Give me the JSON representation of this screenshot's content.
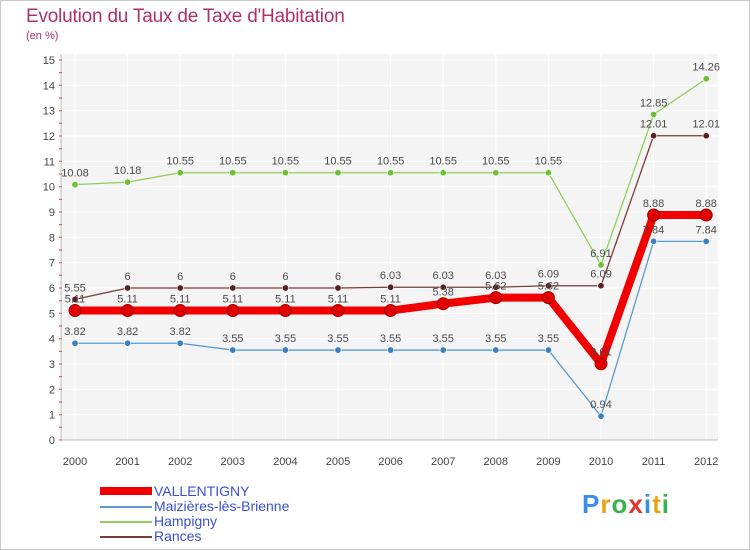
{
  "header": {
    "title": "Evolution du Taux de Taxe d'Habitation",
    "subtitle": "(en %)"
  },
  "brand": {
    "parts": [
      "P",
      "r",
      "o",
      "x",
      "i",
      "t",
      "i"
    ],
    "colors": [
      "#3a8ee6",
      "#e8a21c",
      "#3bb34a",
      "#e2342d",
      "#3a8ee6",
      "#e8a21c",
      "#3bb34a"
    ]
  },
  "chart_data": {
    "type": "line",
    "title": "Evolution du Taux de Taxe d'Habitation",
    "ylabel": "(en %)",
    "xlabel": "",
    "ylim": [
      0,
      15
    ],
    "yticks": [
      "0",
      "1",
      "2",
      "3",
      "4",
      "5",
      "6",
      "7",
      "8",
      "9",
      "10",
      "11",
      "12",
      "13",
      "14",
      "15"
    ],
    "grid": true,
    "categories": [
      "2000",
      "2001",
      "2002",
      "2003",
      "2004",
      "2005",
      "2006",
      "2007",
      "2008",
      "2009",
      "2010",
      "2011",
      "2012"
    ],
    "series": [
      {
        "name": "Hampigny",
        "color": "#8ed05a",
        "marker": "#6cc034",
        "values": [
          10.08,
          10.18,
          10.55,
          10.55,
          10.55,
          10.55,
          10.55,
          10.55,
          10.55,
          10.55,
          6.91,
          12.85,
          14.26
        ],
        "labels": [
          "10.08",
          "10.18",
          "10.55",
          "10.55",
          "10.55",
          "10.55",
          "10.55",
          "10.55",
          "10.55",
          "10.55",
          "6.91",
          "12.85",
          "14.26"
        ]
      },
      {
        "name": "Rances",
        "color": "#7a3b3b",
        "marker": "#5a1f1f",
        "values": [
          5.55,
          6,
          6,
          6,
          6,
          6,
          6.03,
          6.03,
          6.03,
          6.09,
          6.09,
          12.01,
          12.01
        ],
        "labels": [
          "5.55",
          "6",
          "6",
          "6",
          "6",
          "6",
          "6.03",
          "6.03",
          "6.03",
          "6.09",
          "6.09",
          "12.01",
          "12.01"
        ]
      },
      {
        "name": "Maizières-lès-Brienne",
        "color": "#5a9ad0",
        "marker": "#3a7fc0",
        "values": [
          3.82,
          3.82,
          3.82,
          3.55,
          3.55,
          3.55,
          3.55,
          3.55,
          3.55,
          3.55,
          0.94,
          7.84,
          7.84
        ],
        "labels": [
          "3.82",
          "3.82",
          "3.82",
          "3.55",
          "3.55",
          "3.55",
          "3.55",
          "3.55",
          "3.55",
          "3.55",
          "0.94",
          "7.84",
          "7.84"
        ]
      },
      {
        "name": "VALLENTIGNY",
        "color": "#f20000",
        "marker": "#d40000",
        "values": [
          5.11,
          5.11,
          5.11,
          5.11,
          5.11,
          5.11,
          5.11,
          5.38,
          5.62,
          5.62,
          3.01,
          8.88,
          8.88
        ],
        "labels": [
          "5.11",
          "5.11",
          "5.11",
          "5.11",
          "5.11",
          "5.11",
          "5.11",
          "5.38",
          "5.62",
          "5.62",
          "3.01",
          "8.88",
          "8.88"
        ]
      }
    ],
    "legend": [
      {
        "name": "VALLENTIGNY",
        "color": "#f20000",
        "thick": true
      },
      {
        "name": "Maizières-lès-Brienne",
        "color": "#5a9ad0",
        "thick": false
      },
      {
        "name": "Hampigny",
        "color": "#8ed05a",
        "thick": false
      },
      {
        "name": "Rances",
        "color": "#7a3b3b",
        "thick": false
      }
    ]
  }
}
